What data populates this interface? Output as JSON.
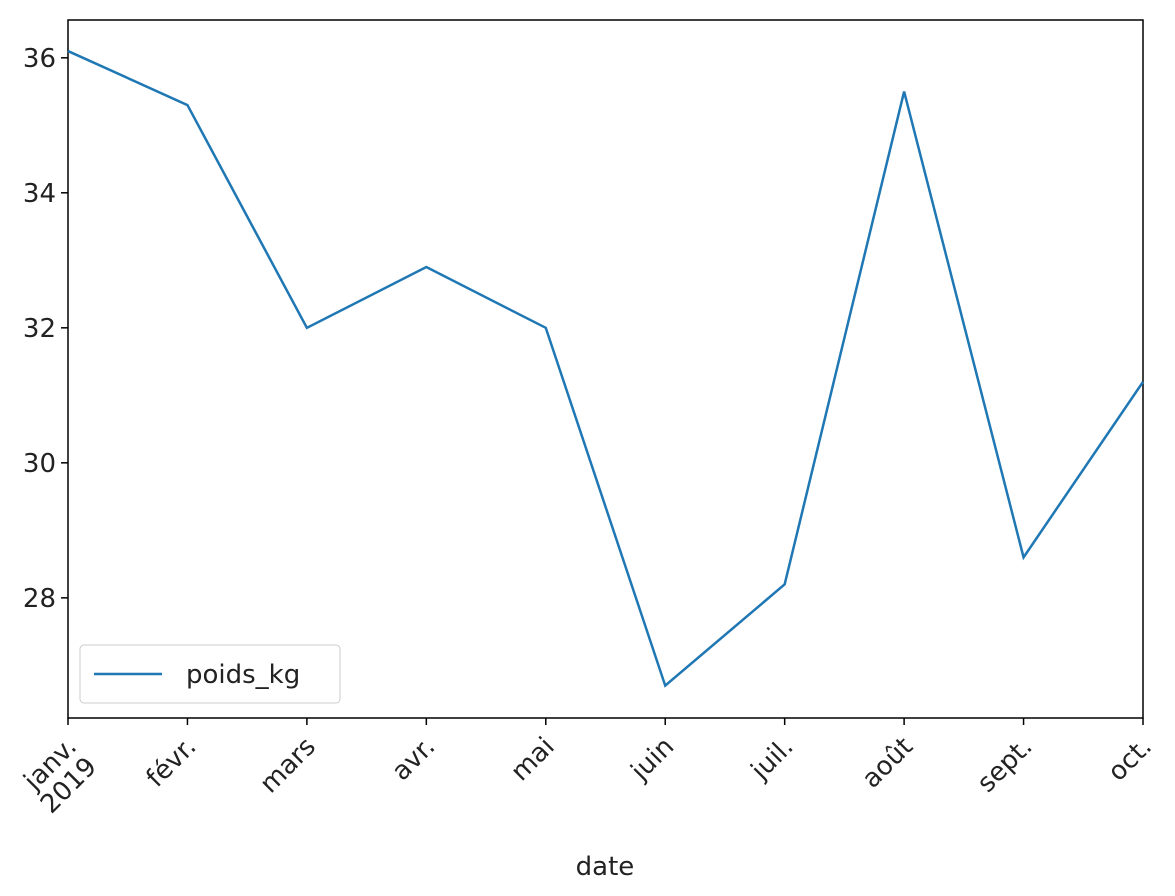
{
  "chart_data": {
    "type": "line",
    "categories": [
      "janv.",
      "févr.",
      "mars",
      "avr.",
      "mai",
      "juin",
      "juil.",
      "août",
      "sept.",
      "oct."
    ],
    "x_year": "2019",
    "xlabel": "date",
    "series": [
      {
        "name": "poids_kg",
        "color": "#1f77b4",
        "values": [
          36.1,
          35.3,
          32.0,
          32.9,
          32.0,
          26.7,
          28.2,
          35.5,
          28.6,
          31.2
        ]
      }
    ],
    "ylim": [
      26.22,
      36.56
    ],
    "yticks": [
      28,
      30,
      32,
      34,
      36
    ],
    "grid": false,
    "legend": "lower left"
  }
}
